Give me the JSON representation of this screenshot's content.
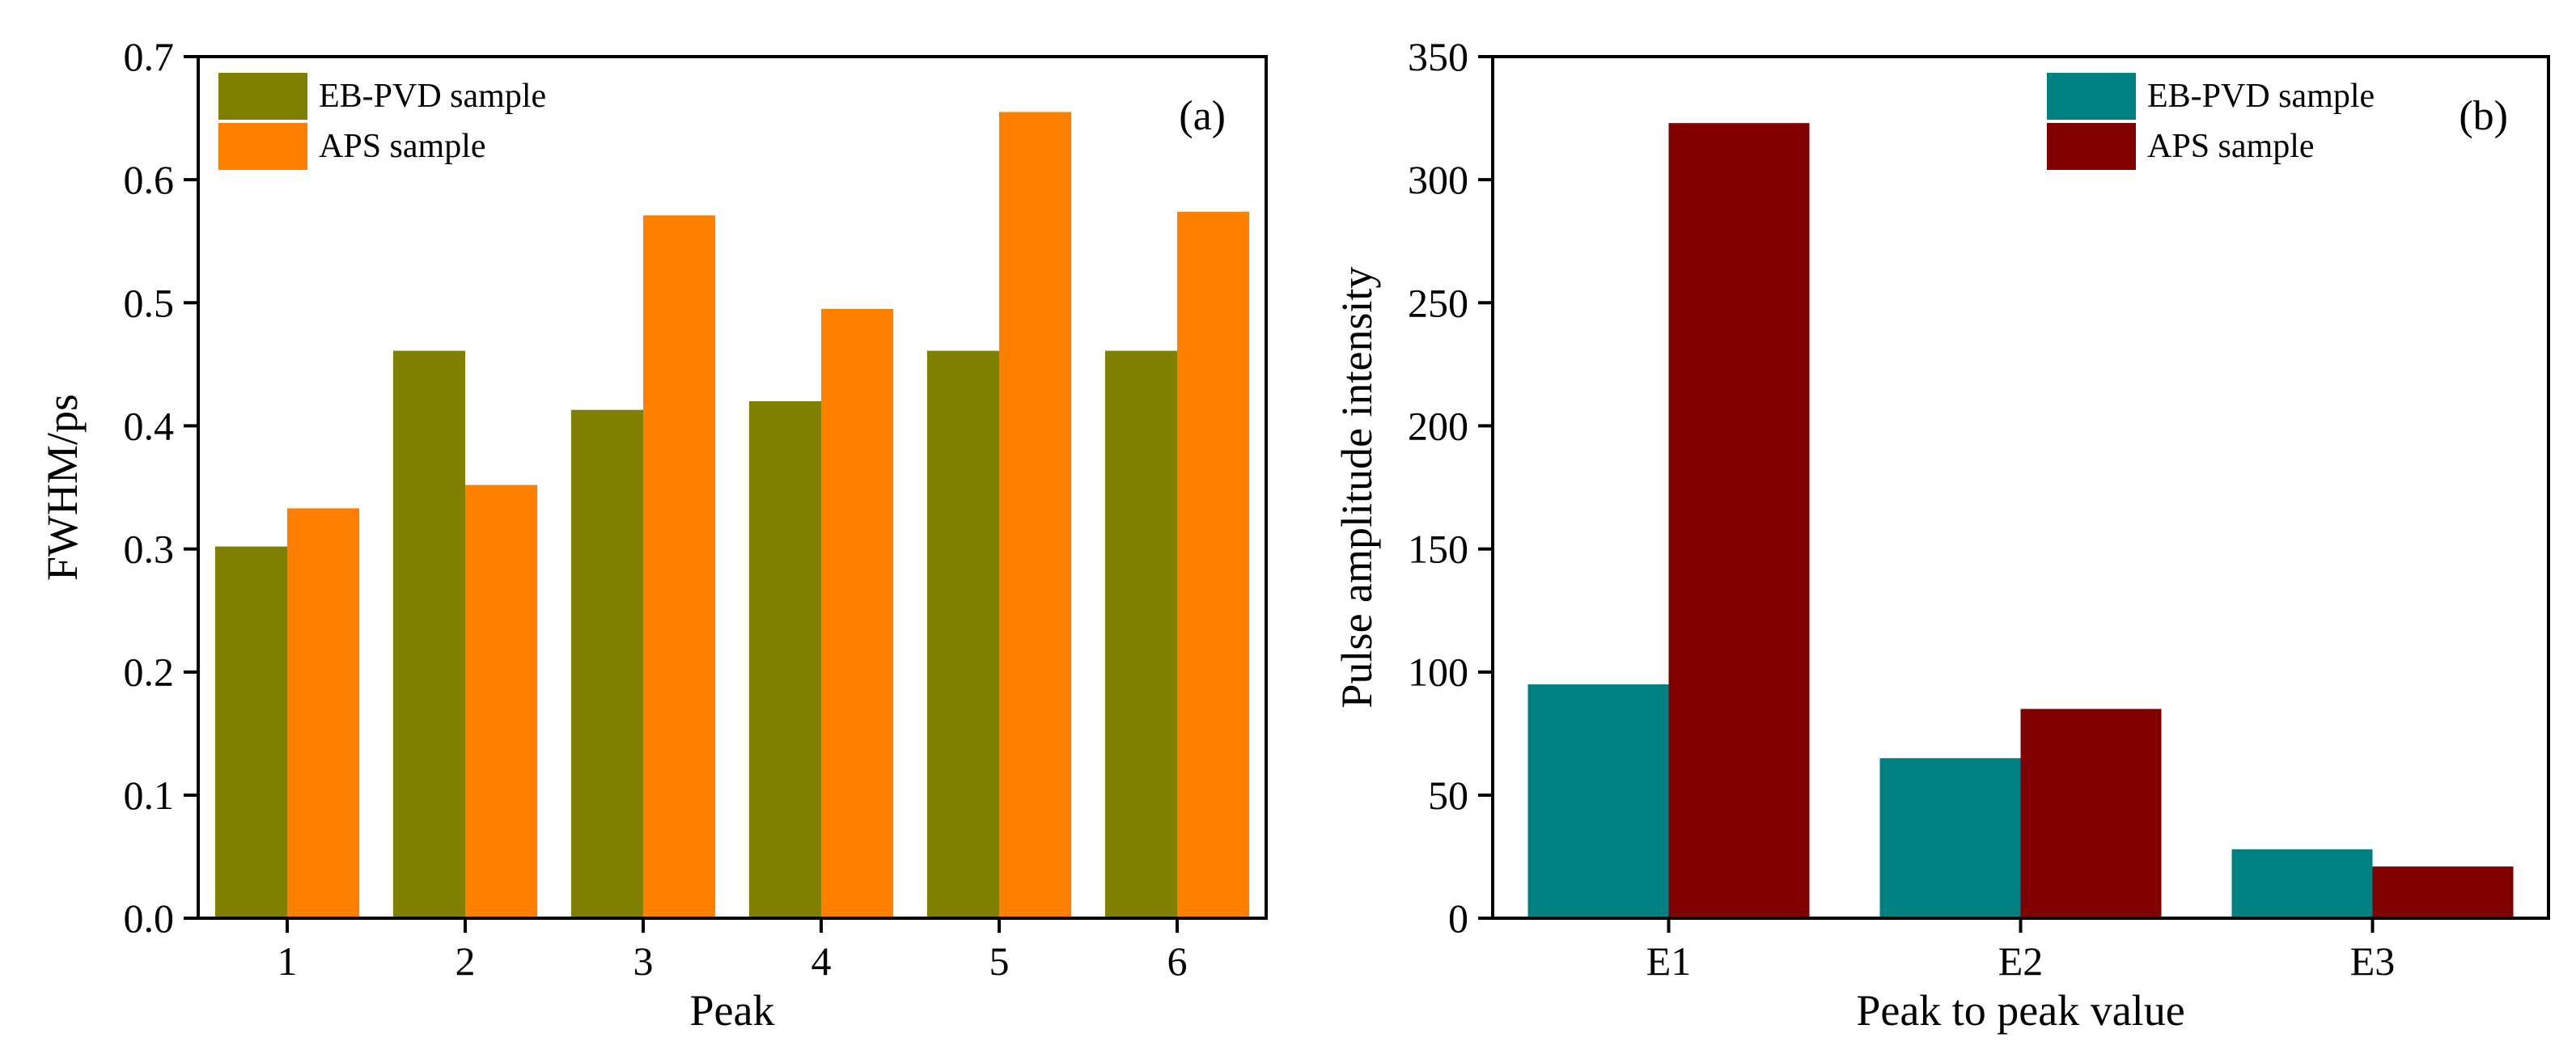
{
  "chart_data": [
    {
      "type": "bar",
      "panel_label": "(a)",
      "xlabel": "Peak",
      "ylabel": "FWHM/ps",
      "categories": [
        "1",
        "2",
        "3",
        "4",
        "5",
        "6"
      ],
      "ylim": [
        0,
        0.7
      ],
      "yticks": [
        "0.0",
        "0.1",
        "0.2",
        "0.3",
        "0.4",
        "0.5",
        "0.6",
        "0.7"
      ],
      "legend_position": "top-left",
      "series": [
        {
          "name": "EB-PVD sample",
          "color": "#808000",
          "values": [
            0.302,
            0.461,
            0.413,
            0.42,
            0.461,
            0.461
          ]
        },
        {
          "name": "APS sample",
          "color": "#ff8000",
          "values": [
            0.333,
            0.352,
            0.571,
            0.495,
            0.655,
            0.574
          ]
        }
      ]
    },
    {
      "type": "bar",
      "panel_label": "(b)",
      "xlabel": "Peak to peak value",
      "ylabel": "Pulse amplitude intensity",
      "categories": [
        "E1",
        "E2",
        "E3"
      ],
      "ylim": [
        0,
        350
      ],
      "yticks": [
        "0",
        "50",
        "100",
        "150",
        "200",
        "250",
        "300",
        "350"
      ],
      "legend_position": "top-right",
      "series": [
        {
          "name": "EB-PVD sample",
          "color": "#008080",
          "values": [
            95,
            65,
            28
          ]
        },
        {
          "name": "APS sample",
          "color": "#800000",
          "values": [
            323,
            85,
            21
          ]
        }
      ]
    }
  ]
}
